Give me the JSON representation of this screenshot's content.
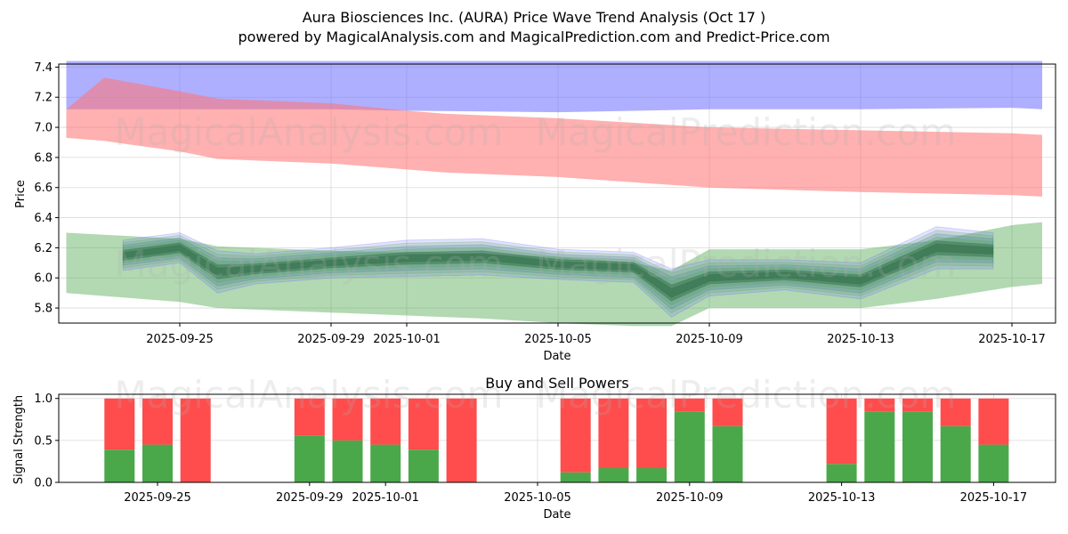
{
  "title_line1": "Aura Biosciences Inc. (AURA) Price Wave Trend Analysis (Oct 17 )",
  "title_line2": "powered by MagicalAnalysis.com and MagicalPrediction.com and Predict-Price.com",
  "watermarks": [
    "MagicalAnalysis.com",
    "MagicalPrediction.com"
  ],
  "colors": {
    "blue": "#6666ff",
    "red": "#ff7777",
    "green": "#55aa55",
    "buy": "#4aa84a",
    "sell": "#ff4c4c",
    "dark": "#2e6b45"
  },
  "chart_data": [
    {
      "type": "area",
      "title": "",
      "xlabel": "Date",
      "ylabel": "Price",
      "ylim": [
        5.7,
        7.42
      ],
      "yticks": [
        "5.8",
        "6.0",
        "6.2",
        "6.4",
        "6.6",
        "6.8",
        "7.0",
        "7.2",
        "7.4"
      ],
      "xticks": [
        "2025-09-25",
        "2025-09-29",
        "2025-10-01",
        "2025-10-05",
        "2025-10-09",
        "2025-10-13",
        "2025-10-17"
      ],
      "xtick_days": [
        2,
        6,
        8,
        12,
        16,
        20,
        24
      ],
      "grid": true,
      "bands": [
        {
          "name": "blue channel",
          "x": [
            -1,
            0.5,
            3,
            6,
            8,
            12,
            16,
            20,
            24,
            24.8
          ],
          "upper": [
            7.44,
            7.44,
            7.44,
            7.44,
            7.44,
            7.44,
            7.44,
            7.44,
            7.44,
            7.44
          ],
          "lower": [
            7.12,
            7.12,
            7.12,
            7.12,
            7.11,
            7.1,
            7.12,
            7.12,
            7.13,
            7.12
          ]
        },
        {
          "name": "red channel",
          "x": [
            -1,
            0,
            2,
            3,
            6,
            8,
            9,
            12,
            16,
            20,
            24,
            24.8
          ],
          "upper": [
            7.12,
            7.33,
            7.24,
            7.19,
            7.16,
            7.11,
            7.09,
            7.06,
            7.0,
            6.98,
            6.96,
            6.95
          ],
          "lower": [
            6.93,
            6.91,
            6.84,
            6.79,
            6.76,
            6.72,
            6.7,
            6.67,
            6.6,
            6.57,
            6.55,
            6.54
          ]
        },
        {
          "name": "green channel",
          "x": [
            -1,
            2,
            3,
            6,
            8,
            10,
            12,
            14,
            15,
            16,
            20,
            22,
            24,
            24.8
          ],
          "upper": [
            6.3,
            6.26,
            6.21,
            6.18,
            6.17,
            6.16,
            6.14,
            6.1,
            6.05,
            6.19,
            6.19,
            6.25,
            6.35,
            6.37
          ],
          "lower": [
            5.9,
            5.84,
            5.8,
            5.77,
            5.75,
            5.73,
            5.7,
            5.68,
            5.68,
            5.8,
            5.8,
            5.86,
            5.94,
            5.96
          ]
        }
      ],
      "wave": {
        "x": [
          0.5,
          2,
          3,
          4,
          6,
          8,
          10,
          12,
          14,
          15,
          16,
          18,
          20,
          22,
          23.5
        ],
        "center": [
          6.15,
          6.2,
          6.04,
          6.06,
          6.1,
          6.13,
          6.14,
          6.09,
          6.07,
          5.9,
          6.0,
          6.02,
          5.98,
          6.2,
          6.18
        ],
        "spread": [
          0.1,
          0.1,
          0.14,
          0.1,
          0.1,
          0.12,
          0.12,
          0.1,
          0.1,
          0.16,
          0.12,
          0.1,
          0.12,
          0.14,
          0.12
        ]
      }
    },
    {
      "type": "bar",
      "title": "Buy and Sell Powers",
      "xlabel": "Date",
      "ylabel": "Signal Strength",
      "ylim": [
        0,
        1.05
      ],
      "yticks": [
        "0.0",
        "0.5",
        "1.0"
      ],
      "xticks": [
        "2025-09-25",
        "2025-09-29",
        "2025-10-01",
        "2025-10-05",
        "2025-10-09",
        "2025-10-13",
        "2025-10-17"
      ],
      "xtick_days": [
        2,
        6,
        8,
        12,
        16,
        20,
        24
      ],
      "grid": true,
      "days": [
        1,
        2,
        3,
        6,
        7,
        8,
        9,
        10,
        13,
        14,
        15,
        16,
        17,
        20,
        21,
        22,
        23,
        24
      ],
      "series": [
        {
          "name": "Buy",
          "values": [
            0.39,
            0.45,
            0.0,
            0.56,
            0.5,
            0.45,
            0.39,
            0.0,
            0.12,
            0.17,
            0.17,
            0.84,
            0.67,
            0.22,
            0.84,
            0.84,
            0.67,
            0.45
          ]
        },
        {
          "name": "Sell",
          "values": [
            0.61,
            0.55,
            1.0,
            0.44,
            0.5,
            0.55,
            0.61,
            1.0,
            0.88,
            0.83,
            0.83,
            0.16,
            0.33,
            0.78,
            0.16,
            0.16,
            0.33,
            0.55
          ]
        }
      ]
    }
  ]
}
